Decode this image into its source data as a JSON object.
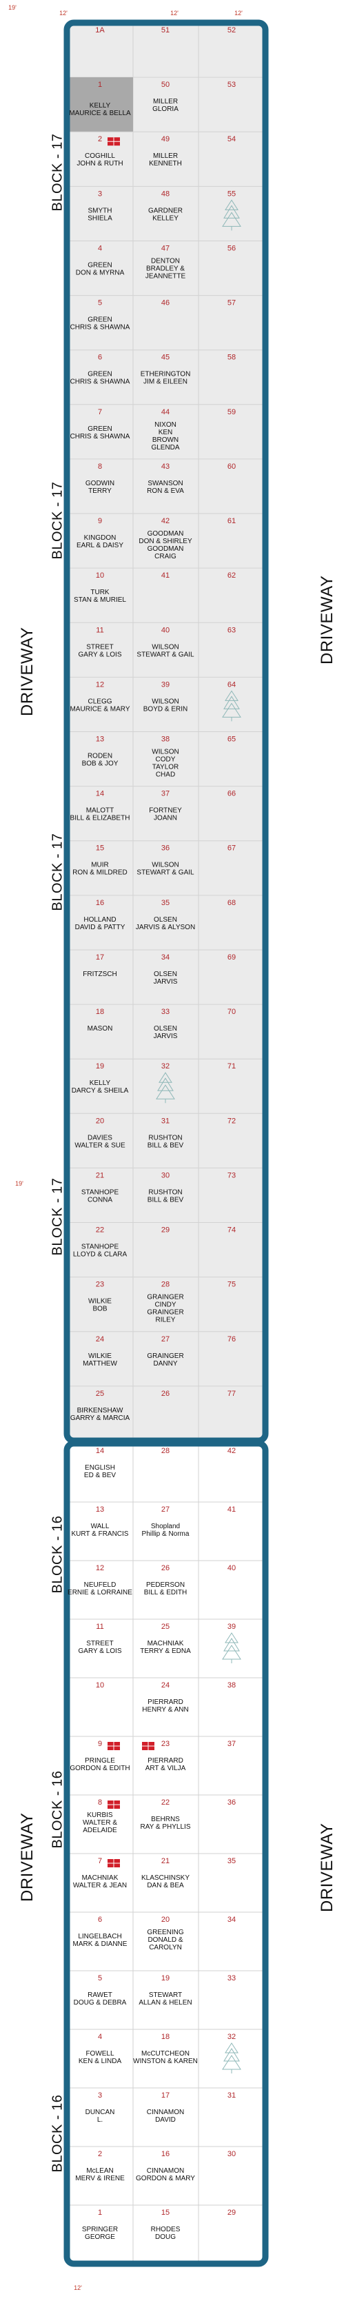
{
  "colors": {
    "border": "#1e6585",
    "fill": "#ebebeb",
    "grid": "#d2d2d2",
    "number": "#b0262a",
    "dim": "#c0392b",
    "ossuary": "#d11f2a",
    "tree": "#8fb8b8"
  },
  "dims": {
    "top_a": "12'",
    "top_b": "12'",
    "top_c": "12'",
    "side_top": "19'",
    "side_mid": "19'",
    "bottom": "12'"
  },
  "driveways": {
    "left_top": "DRIVEWAY",
    "left_bottom": "DRIVEWAY",
    "right_top": "DRIVEWAY",
    "right_bottom": "DRIVEWAY"
  },
  "blocks": [
    "BLOCK - 17",
    "BLOCK - 17",
    "BLOCK - 17",
    "BLOCK - 17",
    "BLOCK - 16",
    "BLOCK - 16",
    "BLOCK - 16"
  ],
  "block17_rows": [
    [
      {
        "n": "1A",
        "names": []
      },
      {
        "n": "51",
        "names": []
      },
      {
        "n": "52",
        "names": []
      }
    ],
    [
      {
        "n": "1",
        "names": [
          "KELLY",
          "MAURICE & BELLA"
        ],
        "shaded": true
      },
      {
        "n": "50",
        "names": [
          "MILLER",
          "GLORIA"
        ]
      },
      {
        "n": "53",
        "names": []
      }
    ],
    [
      {
        "n": "2",
        "names": [
          "COGHILL",
          "JOHN & RUTH"
        ],
        "oss": true
      },
      {
        "n": "49",
        "names": [
          "MILLER",
          "KENNETH"
        ]
      },
      {
        "n": "54",
        "names": []
      }
    ],
    [
      {
        "n": "3",
        "names": [
          "SMYTH",
          "SHIELA"
        ]
      },
      {
        "n": "48",
        "names": [
          "GARDNER",
          "KELLEY"
        ]
      },
      {
        "n": "55",
        "names": [],
        "tree": true
      }
    ],
    [
      {
        "n": "4",
        "names": [
          "GREEN",
          "DON & MYRNA"
        ]
      },
      {
        "n": "47",
        "names": [
          "DENTON",
          "BRADLEY &",
          "JEANNETTE"
        ]
      },
      {
        "n": "56",
        "names": []
      }
    ],
    [
      {
        "n": "5",
        "names": [
          "GREEN",
          "CHRIS & SHAWNA"
        ]
      },
      {
        "n": "46",
        "names": []
      },
      {
        "n": "57",
        "names": []
      }
    ],
    [
      {
        "n": "6",
        "names": [
          "GREEN",
          "CHRIS & SHAWNA"
        ]
      },
      {
        "n": "45",
        "names": [
          "ETHERINGTON",
          "JIM & EILEEN"
        ]
      },
      {
        "n": "58",
        "names": []
      }
    ],
    [
      {
        "n": "7",
        "names": [
          "GREEN",
          "CHRIS & SHAWNA"
        ]
      },
      {
        "n": "44",
        "names": [
          "NIXON",
          "KEN",
          "BROWN",
          "GLENDA"
        ]
      },
      {
        "n": "59",
        "names": []
      }
    ],
    [
      {
        "n": "8",
        "names": [
          "GODWIN",
          "TERRY"
        ]
      },
      {
        "n": "43",
        "names": [
          "SWANSON",
          "RON & EVA"
        ]
      },
      {
        "n": "60",
        "names": []
      }
    ],
    [
      {
        "n": "9",
        "names": [
          "KINGDON",
          "EARL & DAISY"
        ]
      },
      {
        "n": "42",
        "names": [
          "GOODMAN",
          "DON & SHIRLEY",
          "GOODMAN",
          "CRAIG"
        ]
      },
      {
        "n": "61",
        "names": []
      }
    ],
    [
      {
        "n": "10",
        "names": [
          "TURK",
          "STAN & MURIEL"
        ]
      },
      {
        "n": "41",
        "names": []
      },
      {
        "n": "62",
        "names": []
      }
    ],
    [
      {
        "n": "11",
        "names": [
          "STREET",
          "GARY & LOIS"
        ]
      },
      {
        "n": "40",
        "names": [
          "WILSON",
          "STEWART & GAIL"
        ]
      },
      {
        "n": "63",
        "names": []
      }
    ],
    [
      {
        "n": "12",
        "names": [
          "CLEGG",
          "MAURICE & MARY"
        ]
      },
      {
        "n": "39",
        "names": [
          "WILSON",
          "BOYD & ERIN"
        ]
      },
      {
        "n": "64",
        "names": [],
        "tree": true
      }
    ],
    [
      {
        "n": "13",
        "names": [
          "RODEN",
          "BOB & JOY"
        ]
      },
      {
        "n": "38",
        "names": [
          "WILSON",
          "CODY",
          "TAYLOR",
          "CHAD"
        ]
      },
      {
        "n": "65",
        "names": []
      }
    ],
    [
      {
        "n": "14",
        "names": [
          "MALOTT",
          "BILL & ELIZABETH"
        ]
      },
      {
        "n": "37",
        "names": [
          "FORTNEY",
          "JOANN"
        ]
      },
      {
        "n": "66",
        "names": []
      }
    ],
    [
      {
        "n": "15",
        "names": [
          "MUIR",
          "RON & MILDRED"
        ]
      },
      {
        "n": "36",
        "names": [
          "WILSON",
          "STEWART & GAIL"
        ]
      },
      {
        "n": "67",
        "names": []
      }
    ],
    [
      {
        "n": "16",
        "names": [
          "HOLLAND",
          "DAVID & PATTY"
        ]
      },
      {
        "n": "35",
        "names": [
          "OLSEN",
          "JARVIS & ALYSON"
        ]
      },
      {
        "n": "68",
        "names": []
      }
    ],
    [
      {
        "n": "17",
        "names": [
          "FRITZSCH"
        ]
      },
      {
        "n": "34",
        "names": [
          "OLSEN",
          "JARVIS"
        ]
      },
      {
        "n": "69",
        "names": []
      }
    ],
    [
      {
        "n": "18",
        "names": [
          "MASON"
        ]
      },
      {
        "n": "33",
        "names": [
          "OLSEN",
          "JARVIS"
        ]
      },
      {
        "n": "70",
        "names": []
      }
    ],
    [
      {
        "n": "19",
        "names": [
          "KELLY",
          "DARCY & SHEILA"
        ]
      },
      {
        "n": "32",
        "names": [],
        "tree": true
      },
      {
        "n": "71",
        "names": []
      }
    ],
    [
      {
        "n": "20",
        "names": [
          "DAVIES",
          "WALTER & SUE"
        ]
      },
      {
        "n": "31",
        "names": [
          "RUSHTON",
          "BILL & BEV"
        ]
      },
      {
        "n": "72",
        "names": []
      }
    ],
    [
      {
        "n": "21",
        "names": [
          "STANHOPE",
          "CONNA"
        ]
      },
      {
        "n": "30",
        "names": [
          "RUSHTON",
          "BILL & BEV"
        ]
      },
      {
        "n": "73",
        "names": []
      }
    ],
    [
      {
        "n": "22",
        "names": [
          "STANHOPE",
          "LLOYD & CLARA"
        ]
      },
      {
        "n": "29",
        "names": []
      },
      {
        "n": "74",
        "names": []
      }
    ],
    [
      {
        "n": "23",
        "names": [
          "WILKIE",
          "BOB"
        ]
      },
      {
        "n": "28",
        "names": [
          "GRAINGER",
          "CINDY",
          "GRAINGER",
          "RILEY"
        ]
      },
      {
        "n": "75",
        "names": []
      }
    ],
    [
      {
        "n": "24",
        "names": [
          "WILKIE",
          "MATTHEW"
        ]
      },
      {
        "n": "27",
        "names": [
          "GRAINGER",
          "DANNY"
        ]
      },
      {
        "n": "76",
        "names": []
      }
    ],
    [
      {
        "n": "25",
        "names": [
          "BIRKENSHAW",
          "GARRY & MARCIA"
        ]
      },
      {
        "n": "26",
        "names": []
      },
      {
        "n": "77",
        "names": []
      }
    ]
  ],
  "block16_rows": [
    [
      {
        "n": "14",
        "names": [
          "ENGLISH",
          "ED & BEV"
        ]
      },
      {
        "n": "28",
        "names": []
      },
      {
        "n": "42",
        "names": []
      }
    ],
    [
      {
        "n": "13",
        "names": [
          "WALL",
          "KURT & FRANCIS"
        ]
      },
      {
        "n": "27",
        "names": [
          "Shopland",
          "Phillip & Norma"
        ]
      },
      {
        "n": "41",
        "names": []
      }
    ],
    [
      {
        "n": "12",
        "names": [
          "NEUFELD",
          "ERNIE & LORRAINE"
        ]
      },
      {
        "n": "26",
        "names": [
          "PEDERSON",
          "BILL & EDITH"
        ]
      },
      {
        "n": "40",
        "names": []
      }
    ],
    [
      {
        "n": "11",
        "names": [
          "STREET",
          "GARY & LOIS"
        ]
      },
      {
        "n": "25",
        "names": [
          "MACHNIAK",
          "TERRY & EDNA"
        ]
      },
      {
        "n": "39",
        "names": [],
        "tree": true
      }
    ],
    [
      {
        "n": "10",
        "names": []
      },
      {
        "n": "24",
        "names": [
          "PIERRARD",
          "HENRY & ANN"
        ]
      },
      {
        "n": "38",
        "names": []
      }
    ],
    [
      {
        "n": "9",
        "names": [
          "PRINGLE",
          "GORDON & EDITH"
        ],
        "oss": true
      },
      {
        "n": "23",
        "names": [
          "PIERRARD",
          "ART & VILJA"
        ],
        "oss": true
      },
      {
        "n": "37",
        "names": []
      }
    ],
    [
      {
        "n": "8",
        "names": [
          "KURBIS",
          "WALTER &",
          "ADELAIDE"
        ],
        "oss": true
      },
      {
        "n": "22",
        "names": [
          "BEHRNS",
          "RAY & PHYLLIS"
        ]
      },
      {
        "n": "36",
        "names": []
      }
    ],
    [
      {
        "n": "7",
        "names": [
          "MACHNIAK",
          "WALTER & JEAN"
        ],
        "oss": true
      },
      {
        "n": "21",
        "names": [
          "KLASCHINSKY",
          "DAN & BEA"
        ]
      },
      {
        "n": "35",
        "names": []
      }
    ],
    [
      {
        "n": "6",
        "names": [
          "LINGELBACH",
          "MARK & DIANNE"
        ]
      },
      {
        "n": "20",
        "names": [
          "GREENING",
          "DONALD &",
          "CAROLYN"
        ]
      },
      {
        "n": "34",
        "names": []
      }
    ],
    [
      {
        "n": "5",
        "names": [
          "RAWET",
          "DOUG & DEBRA"
        ]
      },
      {
        "n": "19",
        "names": [
          "STEWART",
          "ALLAN & HELEN"
        ]
      },
      {
        "n": "33",
        "names": []
      }
    ],
    [
      {
        "n": "4",
        "names": [
          "FOWELL",
          "KEN & LINDA"
        ]
      },
      {
        "n": "18",
        "names": [
          "McCUTCHEON",
          "WINSTON & KAREN"
        ]
      },
      {
        "n": "32",
        "names": [],
        "tree": true
      }
    ],
    [
      {
        "n": "3",
        "names": [
          "DUNCAN",
          "L."
        ]
      },
      {
        "n": "17",
        "names": [
          "CINNAMON",
          "DAVID"
        ]
      },
      {
        "n": "31",
        "names": []
      }
    ],
    [
      {
        "n": "2",
        "names": [
          "McLEAN",
          "MERV & IRENE"
        ]
      },
      {
        "n": "16",
        "names": [
          "CINNAMON",
          "GORDON & MARY"
        ]
      },
      {
        "n": "30",
        "names": []
      }
    ],
    [
      {
        "n": "1",
        "names": [
          "SPRINGER",
          "GEORGE"
        ]
      },
      {
        "n": "15",
        "names": [
          "RHODES",
          "DOUG"
        ]
      },
      {
        "n": "29",
        "names": []
      }
    ]
  ]
}
